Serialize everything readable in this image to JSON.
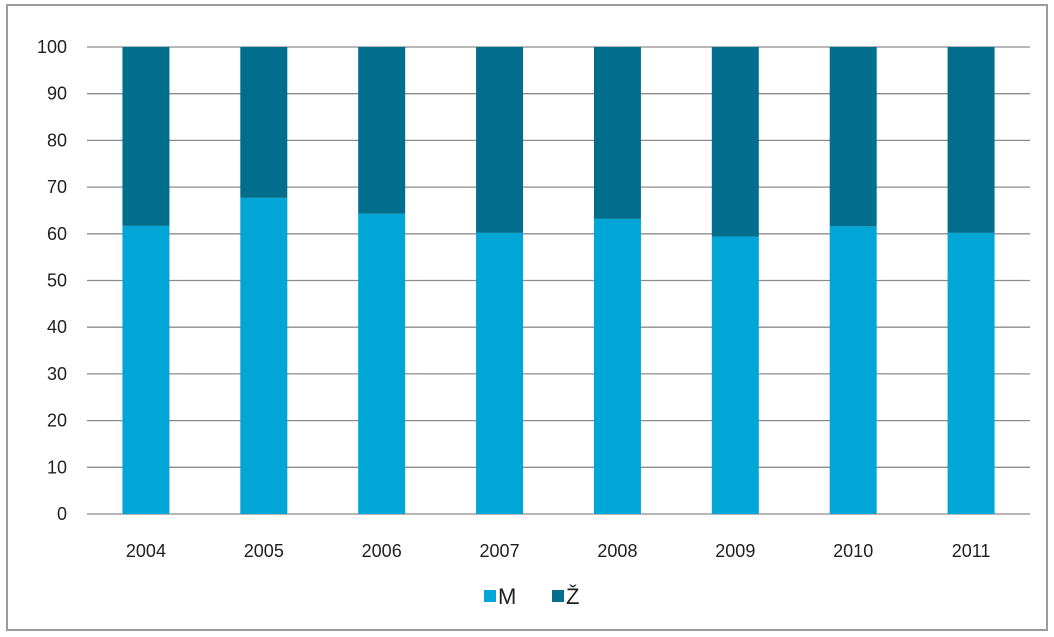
{
  "chart_data": {
    "type": "bar",
    "stacked": true,
    "categories": [
      "2004",
      "2005",
      "2006",
      "2007",
      "2008",
      "2009",
      "2010",
      "2011"
    ],
    "series": [
      {
        "name": "M",
        "color": "#00a6d6",
        "values": [
          61.7,
          67.7,
          64.3,
          60.2,
          63.2,
          59.4,
          61.6,
          60.2
        ]
      },
      {
        "name": "Ž",
        "color": "#006e8c",
        "values": [
          38.3,
          32.3,
          35.7,
          39.8,
          36.8,
          40.6,
          38.4,
          39.8
        ]
      }
    ],
    "ylim": [
      0,
      100
    ],
    "yticks": [
      "0",
      "10",
      "20",
      "30",
      "40",
      "50",
      "60",
      "70",
      "80",
      "90",
      "100"
    ],
    "grid": true,
    "legend_position": "bottom-center",
    "title": "",
    "xlabel": "",
    "ylabel": ""
  }
}
